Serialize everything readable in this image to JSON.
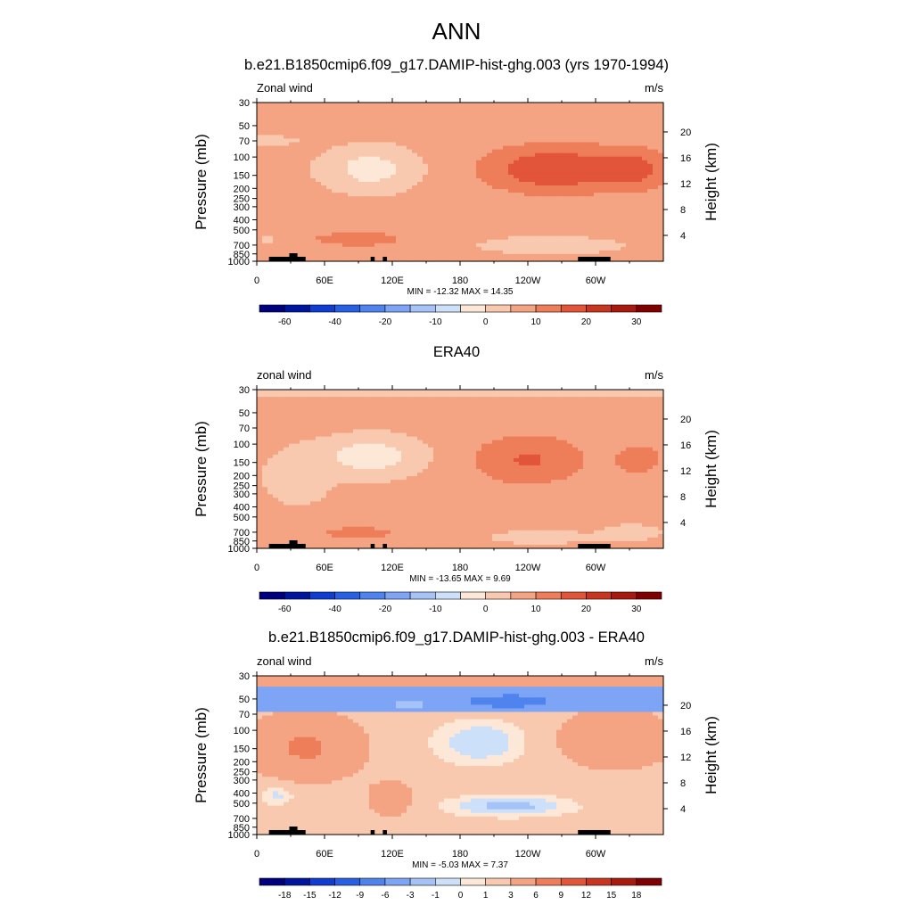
{
  "figure": {
    "title": "ANN"
  },
  "chart_data": [
    {
      "type": "heatmap",
      "kind": "model",
      "title": "b.e21.B1850cmip6.f09_g17.DAMIP-hist-ghg.003 (yrs 1970-1994)",
      "left_label": "Zonal wind",
      "units_label": "m/s",
      "ylabel": "Pressure (mb)",
      "ylabel_right": "Height (km)",
      "x_ticks": [
        "0",
        "60E",
        "120E",
        "180",
        "120W",
        "60W"
      ],
      "pressure_ticks": [
        "30",
        "50",
        "70",
        "100",
        "150",
        "200",
        "250",
        "300",
        "400",
        "500",
        "700",
        "850",
        "1000"
      ],
      "height_ticks": [
        "20",
        "16",
        "12",
        "8",
        "4"
      ],
      "stats": "MIN = -12.32  MAX =  14.35",
      "min": -12.32,
      "max": 14.35,
      "colorbar_labels": [
        "-60",
        "-40",
        "-20",
        "-10",
        "0",
        "10",
        "20",
        "30"
      ]
    },
    {
      "type": "heatmap",
      "kind": "obs",
      "title": "ERA40",
      "left_label": "zonal wind",
      "units_label": "m/s",
      "ylabel": "Pressure (mb)",
      "ylabel_right": "Height (km)",
      "x_ticks": [
        "0",
        "60E",
        "120E",
        "180",
        "120W",
        "60W"
      ],
      "pressure_ticks": [
        "30",
        "50",
        "70",
        "100",
        "150",
        "200",
        "250",
        "300",
        "400",
        "500",
        "700",
        "850",
        "1000"
      ],
      "height_ticks": [
        "20",
        "16",
        "12",
        "8",
        "4"
      ],
      "stats": "MIN = -13.65  MAX =   9.69",
      "min": -13.65,
      "max": 9.69,
      "colorbar_labels": [
        "-60",
        "-40",
        "-20",
        "-10",
        "0",
        "10",
        "20",
        "30"
      ]
    },
    {
      "type": "heatmap",
      "kind": "diff",
      "title": "b.e21.B1850cmip6.f09_g17.DAMIP-hist-ghg.003 - ERA40",
      "left_label": "zonal wind",
      "units_label": "m/s",
      "ylabel": "Pressure (mb)",
      "ylabel_right": "Height (km)",
      "x_ticks": [
        "0",
        "60E",
        "120E",
        "180",
        "120W",
        "60W"
      ],
      "pressure_ticks": [
        "30",
        "50",
        "70",
        "100",
        "150",
        "200",
        "250",
        "300",
        "400",
        "500",
        "700",
        "850",
        "1000"
      ],
      "height_ticks": [
        "20",
        "16",
        "12",
        "8",
        "4"
      ],
      "stats": "MIN =  -5.03  MAX =   7.37",
      "min": -5.03,
      "max": 7.37,
      "colorbar_labels": [
        "-18",
        "-15",
        "-12",
        "-9",
        "-6",
        "-3",
        "-1",
        "0",
        "1",
        "3",
        "6",
        "9",
        "12",
        "15",
        "18"
      ]
    }
  ],
  "colors": {
    "main_scale": [
      "#00007f",
      "#00159d",
      "#0f3dd1",
      "#2860e5",
      "#4f83ee",
      "#7da4f5",
      "#a6c3f8",
      "#cde0fa",
      "#fde7d7",
      "#f8c9ae",
      "#f4a483",
      "#ee7e59",
      "#e2553a",
      "#c8361f",
      "#a91a0e",
      "#7f0000"
    ],
    "diff_scale": [
      "#00007f",
      "#00159d",
      "#0f3dd1",
      "#2860e5",
      "#4f83ee",
      "#7da4f5",
      "#a6c3f8",
      "#cde0fa",
      "#fde7d7",
      "#f8c9ae",
      "#f4a483",
      "#ee7e59",
      "#e2553a",
      "#c8361f",
      "#a91a0e",
      "#7f0000"
    ],
    "terrain": "#000000"
  }
}
